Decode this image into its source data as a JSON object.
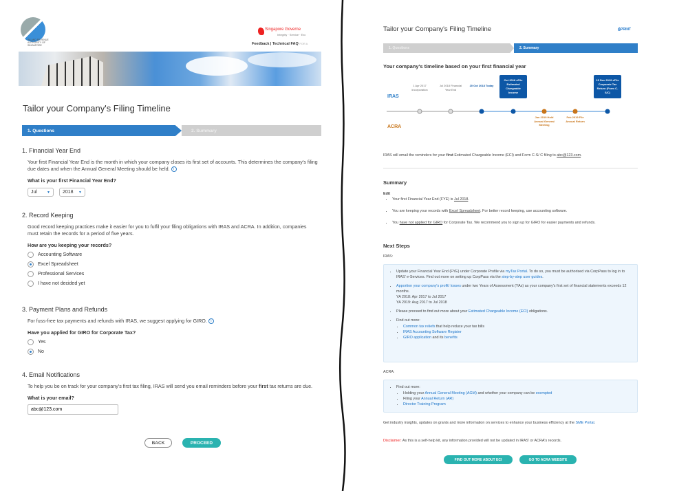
{
  "left": {
    "logo_text": "INLAND REVENUE AUTHORITY OF SINGAPORE",
    "gov_brand": "Singapore Governe",
    "gov_tagline": "Integrity · Service · Exc",
    "nav": {
      "feedback": "Feedback",
      "sep": "|",
      "faq": "Technical FAQ",
      "more": "FOR A"
    },
    "title": "Tailor your Company's Filing Timeline",
    "steps": [
      "1. Questions",
      "2. Summary"
    ],
    "sections": [
      {
        "title": "1. Financial Year End",
        "text": "Your first Financial Year End is the month in which your company closes its first set of accounts. This determines the company's filing due dates and when the Annual General Meeting should be held.",
        "question": "What is your first Financial Year End?",
        "month": "Jul",
        "year": "2018"
      },
      {
        "title": "2. Record Keeping",
        "text": "Good record keeping practices make it easier for you to fulfil your filing obligations with IRAS and ACRA. In addition, companies must retain the records for a period of five years.",
        "question": "How are you keeping your records?",
        "options": [
          "Accounting Software",
          "Excel Spreadsheet",
          "Professional Services",
          "I have not decided yet"
        ],
        "selected": 1
      },
      {
        "title": "3. Payment Plans and Refunds",
        "text": "For fuss-free tax payments and refunds with IRAS, we suggest applying for GIRO.",
        "question": "Have you applied for GIRO for Corporate Tax?",
        "options": [
          "Yes",
          "No"
        ],
        "selected": 1
      },
      {
        "title": "4. Email Notifications",
        "text_a": "To help you be on track for your company's first tax filing, IRAS will send you email reminders before your ",
        "text_bold": "first",
        "text_b": " tax returns are due.",
        "question": "What is your email?",
        "email": "abc@123.com"
      }
    ],
    "buttons": {
      "back": "BACK",
      "proceed": "PROCEED"
    },
    "info_icon": "i"
  },
  "right": {
    "title": "Tailor your Company's Filing Timeline",
    "print": "PRINT",
    "steps": [
      "1. Questions",
      "2. Summary"
    ],
    "timeline_heading": "Your company's timeline based on your first financial year",
    "timeline": {
      "iras_label": "IRAS",
      "acra_label": "ACRA",
      "colors": {
        "iras": "#0d57a6",
        "acra": "#c8751a",
        "past": "#999999"
      },
      "events": [
        {
          "text": "1 Apr 2017 Incorporation",
          "type": "past"
        },
        {
          "text": "Jul 2018 Financial Year End",
          "type": "past"
        },
        {
          "text": "20 Oct 2018 Today",
          "type": "today"
        },
        {
          "text": "Oct 2018 eFile Estimated Chargeable Income",
          "type": "iras"
        },
        {
          "text": "Jan 2019 Hold Annual General Meeting",
          "type": "acra"
        },
        {
          "text": "Feb 2019 File Annual Return",
          "type": "acra"
        },
        {
          "text": "15 Dec 2019 eFile Corporate Tax Return (Form C-S/C)",
          "type": "iras"
        }
      ]
    },
    "email_note": {
      "a": "IRAS will email the reminders for your ",
      "b": "first",
      "c": " Estimated Chargeable Income (ECI) and Form C-S/ C filing to ",
      "email": "abc@123.com",
      "d": "."
    },
    "summary": {
      "heading": "Summary",
      "edit": "Edit",
      "items": [
        {
          "a": "Your first Financial Year End (FYE) is ",
          "v": "Jul 2018",
          "b": "."
        },
        {
          "a": "You are keeping your records with ",
          "v": "Excel Spreadsheet",
          "b": ". For better record keeping, use accounting software."
        },
        {
          "a": "You ",
          "v": "have not applied for GIRO",
          "b": " for Corporate Tax. We recommend you to sign up for GIRO for easier payments and refunds."
        }
      ]
    },
    "next_steps": {
      "heading": "Next Steps",
      "iras": "IRAS:",
      "iras_items": {
        "i1a": "Update your Financial Year End (FYE) under Corporate Profile via ",
        "i1l": "myTax Portal",
        "i1b": ". To do so, you must be authorised via CorpPass to log in to IRAS' e-Services. Find out more on setting up CorpPass via the ",
        "i1l2": "step-by-step user guides",
        "i1c": ".",
        "i2l": "Apportion your company's profit/ losses",
        "i2a": " under two Years of Assessment (YAs) as your company's first set of financial statements exceeds 12 months.",
        "i2y1": "YA 2018: Apr 2017 to Jul 2017",
        "i2y2": "YA 2019: Aug 2017 to Jul 2018",
        "i3a": "Please proceed to find out more about your ",
        "i3l": "Estimated Chargeable Income (ECI)",
        "i3b": " obligations.",
        "i4": "Find out more:",
        "s1l": "Common tax reliefs",
        "s1b": " that help reduce your tax bills",
        "s2l": "IRAS Accounting Software Register",
        "s3l": "GIRO application",
        "s3b": " and its ",
        "s3l2": "benefits"
      },
      "acra": "ACRA:",
      "acra_items": {
        "i1": "Find out more:",
        "s1a": "Holding your ",
        "s1l": "Annual General Meeting (AGM)",
        "s1b": " and whether your company can be ",
        "s1l2": "exempted",
        "s2a": "Filing your ",
        "s2l": "Annual Return (AR)",
        "s3l": "Director Training Program"
      }
    },
    "industry": {
      "a": "Get industry insights, updates on grants and more information on services to enhance your business efficiency at the ",
      "l": "SME Portal",
      "b": "."
    },
    "disclaimer": {
      "label": "Disclaimer:",
      "text": " As this is a self-help kit, any information provided will not be updated in IRAS' or ACRA's records."
    },
    "buttons": {
      "eci": "FIND OUT MORE ABOUT ECI",
      "acra": "GO TO ACRA WEBSITE"
    }
  }
}
